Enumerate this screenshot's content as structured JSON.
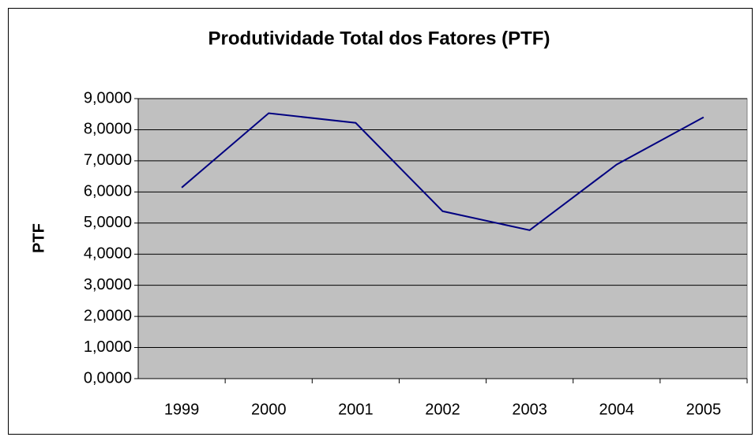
{
  "chart_data": {
    "type": "line",
    "title": "Produtividade Total dos Fatores (PTF)",
    "y_label": "PTF",
    "categories": [
      "1999",
      "2000",
      "2001",
      "2002",
      "2003",
      "2004",
      "2005"
    ],
    "values": [
      6.14,
      8.53,
      8.22,
      5.38,
      4.77,
      6.88,
      8.4
    ],
    "color": "#000080",
    "ylim": [
      0,
      9
    ],
    "yticks": [
      {
        "value": 0,
        "label": "0,0000"
      },
      {
        "value": 1,
        "label": "1,0000"
      },
      {
        "value": 2,
        "label": "2,0000"
      },
      {
        "value": 3,
        "label": "3,0000"
      },
      {
        "value": 4,
        "label": "4,0000"
      },
      {
        "value": 5,
        "label": "5,0000"
      },
      {
        "value": 6,
        "label": "6,0000"
      },
      {
        "value": 7,
        "label": "7,0000"
      },
      {
        "value": 8,
        "label": "8,0000"
      },
      {
        "value": 9,
        "label": "9,0000"
      }
    ],
    "grid": true
  }
}
